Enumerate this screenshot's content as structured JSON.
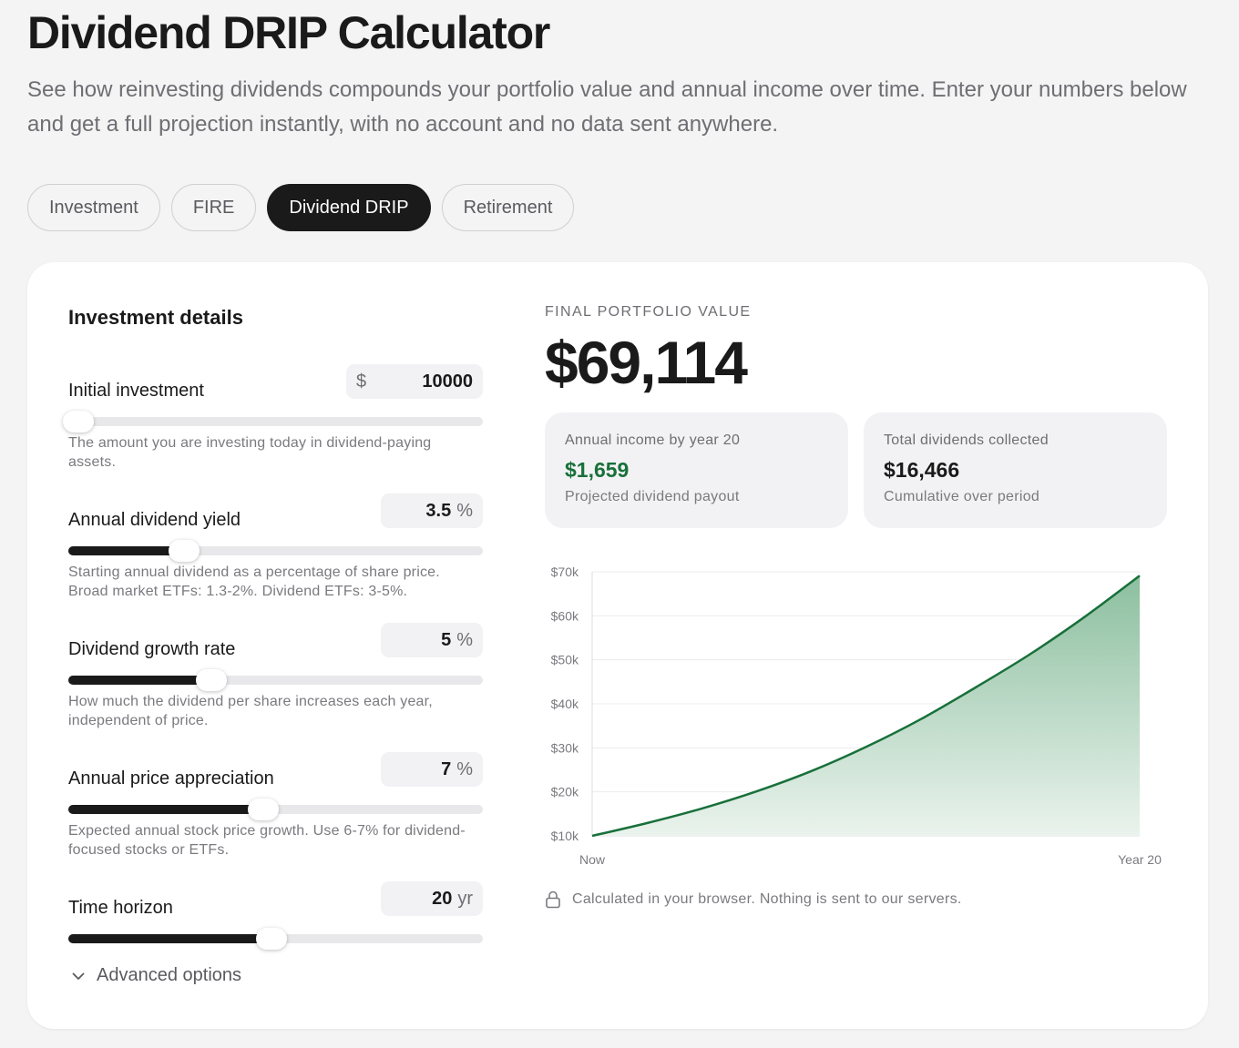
{
  "header": {
    "title": "Dividend DRIP Calculator",
    "subtitle": "See how reinvesting dividends compounds your portfolio value and annual income over time. Enter your numbers below and get a full projection instantly, with no account and no data sent anywhere."
  },
  "tabs": [
    {
      "label": "Investment",
      "active": false
    },
    {
      "label": "FIRE",
      "active": false
    },
    {
      "label": "Dividend DRIP",
      "active": true
    },
    {
      "label": "Retirement",
      "active": false
    }
  ],
  "inputs": {
    "title": "Investment details",
    "fields": [
      {
        "label": "Initial investment",
        "prefix": "$",
        "value": "10000",
        "unit": "",
        "level": 0.01,
        "help": "The amount you are investing today in dividend-paying assets."
      },
      {
        "label": "Annual dividend yield",
        "prefix": "",
        "value": "3.5",
        "unit": "%",
        "level": 0.28,
        "help": "Starting annual dividend as a percentage of share price. Broad market ETFs: 1.3-2%. Dividend ETFs: 3-5%."
      },
      {
        "label": "Dividend growth rate",
        "prefix": "",
        "value": "5",
        "unit": "%",
        "level": 0.345,
        "help": "How much the dividend per share increases each year, independent of price."
      },
      {
        "label": "Annual price appreciation",
        "prefix": "",
        "value": "7",
        "unit": "%",
        "level": 0.47,
        "help": "Expected annual stock price growth. Use 6-7% for dividend-focused stocks or ETFs."
      },
      {
        "label": "Time horizon",
        "prefix": "",
        "value": "20",
        "unit": "yr",
        "level": 0.49,
        "help": ""
      }
    ],
    "advanced_label": "Advanced options"
  },
  "results": {
    "kicker": "FINAL PORTFOLIO VALUE",
    "final_value": "$69,114",
    "stats": [
      {
        "label": "Annual income by year 20",
        "value": "$1,659",
        "sub": "Projected dividend payout"
      },
      {
        "label": "Total dividends collected",
        "value": "$16,466",
        "sub": "Cumulative over period"
      }
    ],
    "privacy_note": "Calculated in your browser. Nothing is sent to our servers."
  },
  "colors": {
    "accent_green": "#18703a",
    "area_top": "#8cbf9f",
    "area_bottom": "#eaf3ed",
    "dark": "#1a1a1a"
  },
  "chart_data": {
    "type": "area",
    "x": [
      0,
      2,
      4,
      6,
      8,
      10,
      12,
      14,
      16,
      18,
      20
    ],
    "x_tick_labels": {
      "0": "Now",
      "20": "Year 20"
    },
    "series": [
      {
        "values": [
          10000,
          12900,
          16200,
          20100,
          24700,
          30200,
          36500,
          43700,
          51300,
          59800,
          69114
        ]
      }
    ],
    "y_ticks": [
      10000,
      20000,
      30000,
      40000,
      50000,
      60000,
      70000
    ],
    "y_tick_labels": [
      "$10k",
      "$20k",
      "$30k",
      "$40k",
      "$50k",
      "$60k",
      "$70k"
    ],
    "ylim": [
      10000,
      70000
    ],
    "xlim": [
      0,
      20
    ],
    "grid": true
  }
}
